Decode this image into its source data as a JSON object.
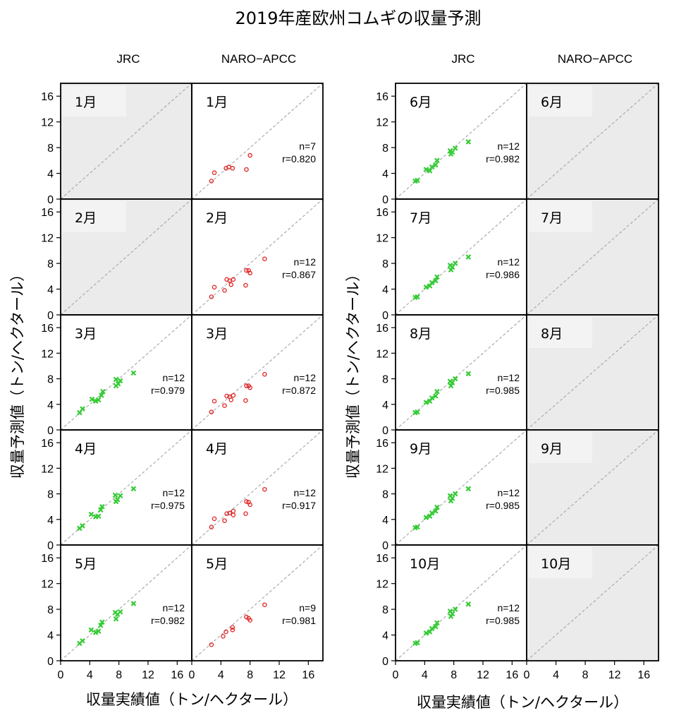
{
  "title": "2019年産欧州コムギの収量予測",
  "y_label": "収量予測値（トン/ヘクタール）",
  "x_label": "収量実績値（トン/ヘクタール）",
  "colors": {
    "jrc": "#33cc33",
    "naro": "#e02020",
    "na_fill": "#ebebeb",
    "na_label": "#f3f3f3",
    "diagonal": "#aaaaaa"
  },
  "chart_data": [
    {
      "type": "scatter",
      "group": "left",
      "columns": [
        "JRC",
        "NARO−APCC"
      ],
      "xlim": [
        0,
        18
      ],
      "ylim": [
        0,
        18
      ],
      "ticks": [
        0,
        4,
        8,
        12,
        16
      ],
      "rows": [
        {
          "month": "1月",
          "JRC": null,
          "NARO": {
            "n": "n=7",
            "r": "r=0.820",
            "x": [
              2.7,
              3.1,
              4.7,
              5.1,
              5.6,
              7.5,
              8.0
            ],
            "y": [
              2.8,
              4.1,
              4.8,
              5.0,
              4.8,
              4.6,
              6.8
            ]
          }
        },
        {
          "month": "2月",
          "JRC": null,
          "NARO": {
            "n": "n=12",
            "r": "r=0.867",
            "x": [
              2.7,
              3.1,
              4.5,
              4.8,
              5.2,
              5.7,
              5.4,
              7.5,
              7.8,
              8.0,
              7.4,
              10.0
            ],
            "y": [
              2.8,
              4.3,
              3.8,
              5.5,
              5.3,
              5.5,
              4.7,
              6.9,
              6.9,
              6.5,
              4.6,
              8.7
            ]
          }
        },
        {
          "month": "3月",
          "JRC": {
            "n": "n=12",
            "r": "r=0.979",
            "x": [
              2.6,
              3.0,
              4.3,
              4.8,
              5.2,
              5.6,
              5.8,
              7.6,
              7.6,
              7.9,
              8.2,
              10.0
            ],
            "y": [
              2.7,
              3.3,
              4.8,
              4.5,
              4.7,
              5.4,
              6.0,
              7.9,
              6.9,
              7.2,
              7.7,
              8.9
            ]
          },
          "NARO": {
            "n": "n=12",
            "r": "r=0.872",
            "x": [
              2.7,
              3.1,
              4.5,
              4.8,
              5.2,
              5.7,
              5.4,
              7.5,
              7.8,
              8.0,
              7.4,
              10.0
            ],
            "y": [
              2.8,
              4.5,
              3.8,
              5.3,
              5.2,
              5.4,
              4.7,
              6.9,
              6.9,
              6.6,
              4.6,
              8.7
            ]
          }
        },
        {
          "month": "4月",
          "JRC": {
            "n": "n=12",
            "r": "r=0.975",
            "x": [
              2.6,
              3.0,
              4.2,
              4.8,
              5.2,
              5.5,
              5.7,
              7.5,
              7.6,
              7.8,
              8.2,
              10.0
            ],
            "y": [
              2.6,
              3.0,
              4.8,
              4.4,
              4.5,
              5.5,
              6.0,
              7.8,
              6.8,
              7.1,
              7.7,
              8.8
            ]
          },
          "NARO": {
            "n": "n=12",
            "r": "r=0.917",
            "x": [
              2.7,
              3.1,
              4.5,
              4.8,
              5.2,
              5.7,
              5.7,
              7.5,
              7.8,
              8.0,
              7.4,
              10.0
            ],
            "y": [
              2.8,
              4.1,
              3.8,
              4.9,
              5.0,
              5.3,
              4.7,
              6.8,
              6.7,
              6.3,
              4.9,
              8.7
            ]
          }
        },
        {
          "month": "5月",
          "JRC": {
            "n": "n=12",
            "r": "r=0.982",
            "x": [
              2.6,
              3.0,
              4.2,
              4.8,
              5.2,
              5.5,
              5.7,
              7.5,
              7.6,
              7.8,
              8.2,
              10.0
            ],
            "y": [
              2.7,
              3.1,
              4.8,
              4.4,
              4.6,
              5.5,
              6.0,
              7.5,
              6.5,
              7.2,
              7.6,
              8.9
            ]
          },
          "NARO": {
            "n": "n=9",
            "r": "r=0.981",
            "x": [
              2.7,
              4.3,
              4.7,
              5.6,
              5.6,
              7.5,
              7.8,
              8.0,
              10.0
            ],
            "y": [
              2.5,
              3.8,
              4.5,
              4.8,
              5.2,
              6.8,
              6.6,
              6.3,
              8.7
            ]
          }
        }
      ]
    },
    {
      "type": "scatter",
      "group": "right",
      "columns": [
        "JRC",
        "NARO−APCC"
      ],
      "xlim": [
        0,
        18
      ],
      "ylim": [
        0,
        18
      ],
      "ticks": [
        0,
        4,
        8,
        12,
        16
      ],
      "rows": [
        {
          "month": "6月",
          "JRC": {
            "n": "n=12",
            "r": "r=0.982",
            "x": [
              2.7,
              3.0,
              4.2,
              4.7,
              5.0,
              5.5,
              5.7,
              7.5,
              7.6,
              7.8,
              8.2,
              10.0
            ],
            "y": [
              2.8,
              2.9,
              4.6,
              4.4,
              5.0,
              5.3,
              6.0,
              7.5,
              7.0,
              7.3,
              7.9,
              8.9
            ]
          },
          "NARO": null
        },
        {
          "month": "7月",
          "JRC": {
            "n": "n=12",
            "r": "r=0.986",
            "x": [
              2.7,
              3.0,
              4.2,
              4.7,
              5.0,
              5.5,
              5.7,
              7.5,
              7.6,
              7.8,
              8.2,
              10.0
            ],
            "y": [
              2.7,
              2.8,
              4.3,
              4.5,
              5.0,
              5.3,
              5.9,
              7.7,
              7.0,
              7.4,
              8.0,
              9.0
            ]
          },
          "NARO": null
        },
        {
          "month": "8月",
          "JRC": {
            "n": "n=12",
            "r": "r=0.985",
            "x": [
              2.7,
              3.0,
              4.2,
              4.7,
              5.0,
              5.5,
              5.7,
              7.5,
              7.6,
              7.8,
              8.2,
              10.0
            ],
            "y": [
              2.7,
              2.8,
              4.3,
              4.5,
              5.0,
              5.3,
              6.0,
              7.6,
              6.9,
              7.4,
              8.0,
              8.8
            ]
          },
          "NARO": null
        },
        {
          "month": "9月",
          "JRC": {
            "n": "n=12",
            "r": "r=0.985",
            "x": [
              2.7,
              3.0,
              4.2,
              4.7,
              5.0,
              5.5,
              5.7,
              7.5,
              7.6,
              7.8,
              8.2,
              10.0
            ],
            "y": [
              2.7,
              2.8,
              4.3,
              4.5,
              5.0,
              5.3,
              5.9,
              7.7,
              6.9,
              7.3,
              8.0,
              8.8
            ]
          },
          "NARO": null
        },
        {
          "month": "10月",
          "JRC": {
            "n": "n=12",
            "r": "r=0.985",
            "x": [
              2.7,
              3.0,
              4.2,
              4.7,
              5.0,
              5.5,
              5.7,
              7.5,
              7.6,
              7.8,
              8.2,
              10.0
            ],
            "y": [
              2.7,
              2.8,
              4.3,
              4.5,
              5.0,
              5.3,
              5.9,
              7.7,
              6.9,
              7.3,
              8.0,
              8.8
            ]
          },
          "NARO": null
        }
      ]
    }
  ]
}
